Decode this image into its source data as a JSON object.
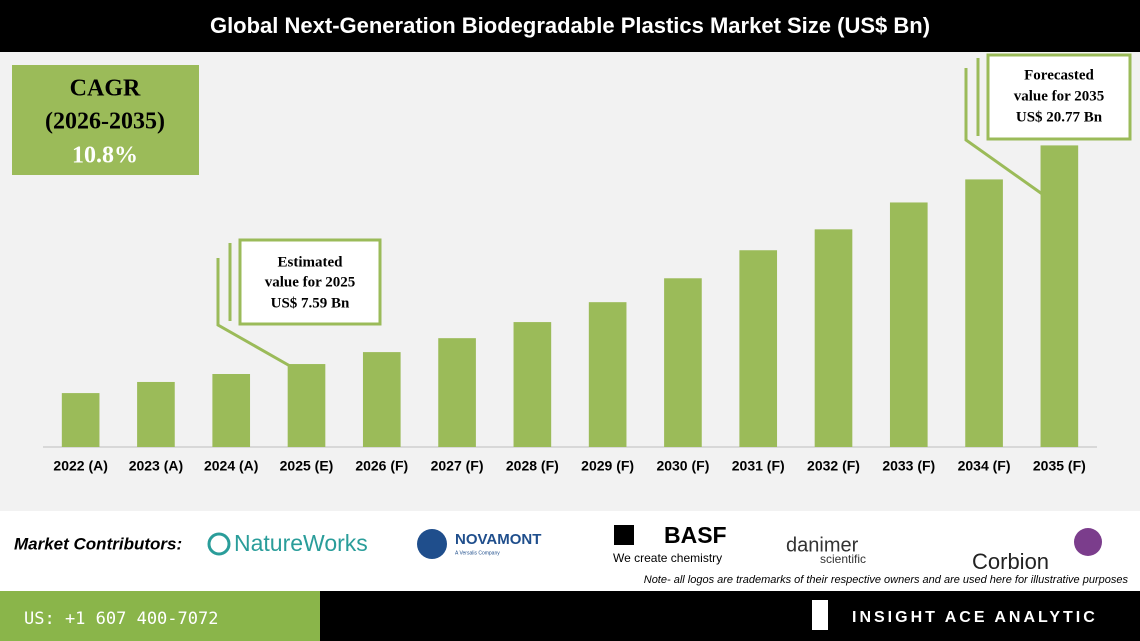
{
  "chart_data": {
    "type": "bar",
    "title": "Global Next-Generation Biodegradable Plastics Market Size (US$ Bn)",
    "categories": [
      "2022 (A)",
      "2023 (A)",
      "2024 (A)",
      "2025 (E)",
      "2026 (F)",
      "2027 (F)",
      "2028 (F)",
      "2029 (F)",
      "2030 (F)",
      "2031 (F)",
      "2032 (F)",
      "2033 (F)",
      "2034 (F)",
      "2035 (F)"
    ],
    "values": [
      5.84,
      6.51,
      6.99,
      7.59,
      8.31,
      9.15,
      10.12,
      11.32,
      12.76,
      14.45,
      15.71,
      17.33,
      18.72,
      20.77
    ],
    "color": "#9bbb59",
    "ylim": [
      2.59,
      26.4
    ],
    "cagr_box": [
      "CAGR",
      "(2026-2035)",
      "10.8%"
    ],
    "callout_2025": [
      "Estimated",
      "value for 2025",
      "US$ 7.59 Bn"
    ],
    "callout_2035": [
      "Forecasted",
      "value for 2035",
      "US$ 20.77 Bn"
    ]
  },
  "footer": {
    "contributors_label": "Market Contributors:",
    "logos": [
      "NatureWorks",
      "NOVAMONT",
      "A Versalis Company",
      "BASF",
      "We create chemistry",
      "danimer",
      "scientific",
      "Corbion"
    ],
    "note": "Note- all logos are trademarks of their respective owners and are used here for illustrative purposes",
    "phone": "US: +1 607 400-7072",
    "brand": "INSIGHT ACE ANALYTIC"
  }
}
